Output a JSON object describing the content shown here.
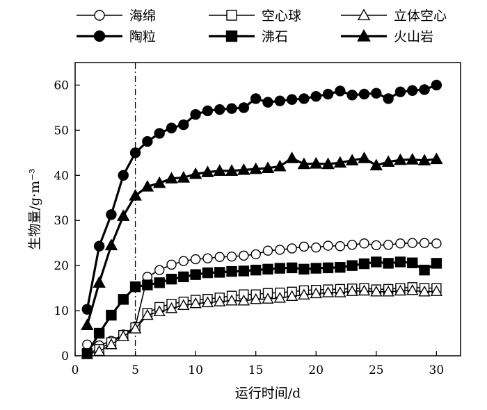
{
  "chart_data": {
    "type": "line",
    "xlabel": "运行时间/d",
    "ylabel": "生物量/g·m⁻³",
    "xlim": [
      0,
      32
    ],
    "ylim": [
      0,
      65
    ],
    "xticks": [
      0,
      5,
      10,
      15,
      20,
      25,
      30
    ],
    "yticks": [
      0,
      10,
      20,
      30,
      40,
      50,
      60
    ],
    "grid": false,
    "legend_position": "top",
    "reference_line": {
      "x": 5,
      "style": "dash-dot"
    },
    "series": [
      {
        "name": "海绵",
        "marker": "circle",
        "fill": "open",
        "x": [
          1,
          2,
          3,
          4,
          5,
          6,
          7,
          8,
          9,
          10,
          11,
          12,
          13,
          14,
          15,
          16,
          17,
          18,
          19,
          20,
          21,
          22,
          23,
          24,
          25,
          26,
          27,
          28,
          29,
          30
        ],
        "values": [
          2.5,
          2.3,
          3.3,
          4.7,
          6.5,
          17.5,
          19.0,
          20.2,
          21.0,
          21.4,
          21.6,
          21.9,
          22.0,
          22.2,
          22.5,
          23.3,
          23.5,
          23.8,
          24.2,
          24.0,
          24.4,
          24.3,
          24.6,
          24.9,
          24.5,
          24.6,
          24.9,
          25.0,
          25.0,
          24.9
        ]
      },
      {
        "name": "空心球",
        "marker": "square",
        "fill": "open",
        "x": [
          1,
          2,
          3,
          4,
          5,
          6,
          7,
          8,
          9,
          10,
          11,
          12,
          13,
          14,
          15,
          16,
          17,
          18,
          19,
          20,
          21,
          22,
          23,
          24,
          25,
          26,
          27,
          28,
          29,
          30
        ],
        "values": [
          0.5,
          1.5,
          3.0,
          4.6,
          6.3,
          9.5,
          10.8,
          11.5,
          12.0,
          12.4,
          12.6,
          12.9,
          13.3,
          13.6,
          13.6,
          13.9,
          14.0,
          14.2,
          14.5,
          14.6,
          14.7,
          14.8,
          14.9,
          15.0,
          14.7,
          14.8,
          15.0,
          15.2,
          15.0,
          15.0
        ]
      },
      {
        "name": "立体空心",
        "marker": "triangle",
        "fill": "open",
        "x": [
          1,
          2,
          3,
          4,
          5,
          6,
          7,
          8,
          9,
          10,
          11,
          12,
          13,
          14,
          15,
          16,
          17,
          18,
          19,
          20,
          21,
          22,
          23,
          24,
          25,
          26,
          27,
          28,
          29,
          30
        ],
        "values": [
          0.3,
          1.0,
          2.5,
          4.3,
          6.0,
          9.0,
          9.8,
          10.5,
          11.2,
          11.6,
          11.8,
          12.0,
          12.2,
          12.2,
          12.5,
          12.6,
          12.8,
          13.2,
          13.5,
          13.8,
          14.0,
          14.0,
          14.3,
          14.4,
          14.2,
          14.2,
          14.4,
          14.5,
          14.2,
          14.3
        ]
      },
      {
        "name": "陶粒",
        "marker": "circle",
        "fill": "solid",
        "x": [
          1,
          2,
          3,
          4,
          5,
          6,
          7,
          8,
          9,
          10,
          11,
          12,
          13,
          14,
          15,
          16,
          17,
          18,
          19,
          20,
          21,
          22,
          23,
          24,
          25,
          26,
          27,
          28,
          29,
          30
        ],
        "values": [
          10.3,
          24.3,
          31.3,
          40.0,
          45.0,
          47.5,
          49.3,
          50.5,
          51.2,
          53.5,
          54.3,
          54.6,
          54.8,
          55.0,
          57.0,
          56.2,
          56.5,
          56.8,
          57.0,
          57.5,
          58.0,
          58.7,
          57.8,
          58.0,
          58.2,
          57.0,
          58.5,
          58.8,
          59.0,
          60.0
        ]
      },
      {
        "name": "沸石",
        "marker": "square",
        "fill": "solid",
        "x": [
          1,
          2,
          3,
          4,
          5,
          6,
          7,
          8,
          9,
          10,
          11,
          12,
          13,
          14,
          15,
          16,
          17,
          18,
          19,
          20,
          21,
          22,
          23,
          24,
          25,
          26,
          27,
          28,
          29,
          30
        ],
        "values": [
          0.5,
          5.0,
          9.0,
          12.5,
          15.3,
          15.7,
          16.2,
          17.0,
          17.5,
          18.0,
          18.4,
          18.5,
          18.7,
          18.8,
          19.0,
          19.2,
          19.4,
          19.5,
          19.2,
          19.4,
          19.5,
          19.6,
          20.0,
          20.4,
          20.8,
          20.5,
          20.8,
          20.6,
          19.0,
          20.5
        ]
      },
      {
        "name": "火山岩",
        "marker": "triangle",
        "fill": "solid",
        "x": [
          1,
          2,
          3,
          4,
          5,
          6,
          7,
          8,
          9,
          10,
          11,
          12,
          13,
          14,
          15,
          16,
          17,
          18,
          19,
          20,
          21,
          22,
          23,
          24,
          25,
          26,
          27,
          28,
          29,
          30
        ],
        "values": [
          6.8,
          16.2,
          24.5,
          31.0,
          35.5,
          37.5,
          38.3,
          39.3,
          39.5,
          40.3,
          40.7,
          41.0,
          41.0,
          41.2,
          41.4,
          41.6,
          42.0,
          43.8,
          42.5,
          42.6,
          42.5,
          42.8,
          43.3,
          43.8,
          42.2,
          43.0,
          43.4,
          43.5,
          43.3,
          43.6
        ]
      }
    ]
  }
}
